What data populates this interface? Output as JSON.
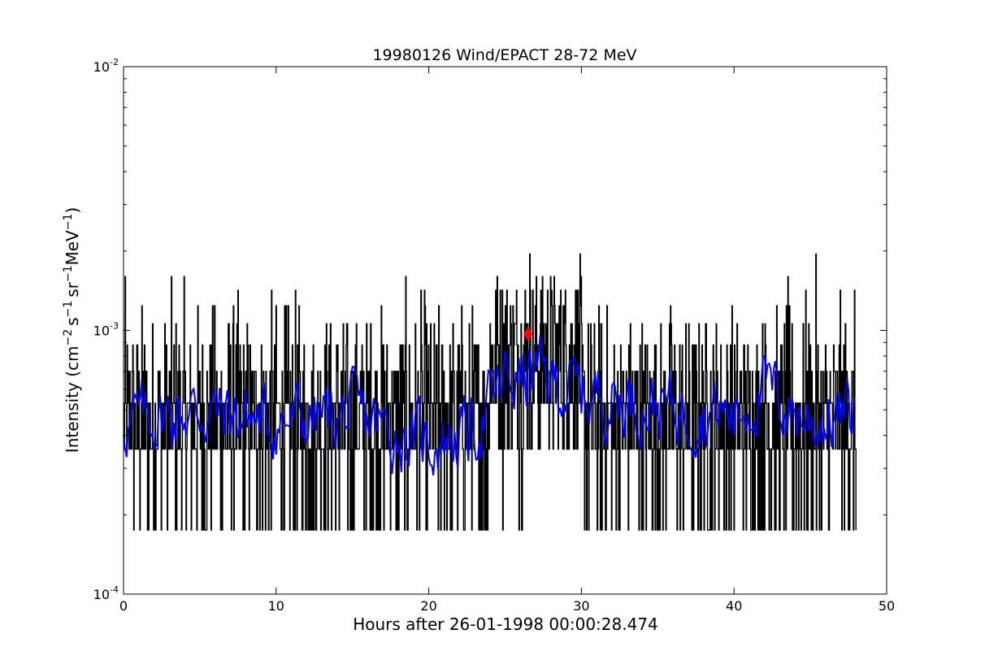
{
  "chart_data": {
    "type": "line",
    "title": "19980126 Wind/EPACT 28-72 MeV",
    "xlabel": "Hours after 26-01-1998 00:00:28.474",
    "ylabel": {
      "prefix": "Intensity (cm",
      "cm_exp": "−2",
      "s": "s",
      "s_exp": "−1",
      "sr": "sr",
      "sr_exp": "−1",
      "mev": "MeV",
      "mev_exp": "−1",
      "suffix": ")"
    },
    "xlim": [
      0,
      50
    ],
    "ylim": [
      0.0001,
      0.01
    ],
    "yscale": "log",
    "x_ticks": [
      0,
      10,
      20,
      30,
      40,
      50
    ],
    "x_tick_labels": [
      "0",
      "10",
      "20",
      "30",
      "40",
      "50"
    ],
    "y_major_ticks": [
      {
        "value": 0.0001,
        "base": "10",
        "exp": "-4"
      },
      {
        "value": 0.001,
        "base": "10",
        "exp": "-3"
      },
      {
        "value": 0.01,
        "base": "10",
        "exp": "-2"
      }
    ],
    "grid": false,
    "raw_series": {
      "color": "#000000",
      "x_range": [
        0,
        48
      ],
      "sample_step_hours": 0.0333,
      "levels": [
        0.000175,
        0.000355,
        0.00053,
        0.0007,
        0.00088,
        0.00106,
        0.00124,
        0.00142,
        0.0016,
        0.00195
      ],
      "level_weights": [
        0.17,
        0.3,
        0.27,
        0.12,
        0.07,
        0.035,
        0.02,
        0.01,
        0.004,
        0.001
      ],
      "enhanced_interval": [
        24,
        30
      ],
      "peak": {
        "x": 26.6,
        "y": 0.00195
      }
    },
    "smoothed_series": {
      "color": "#0000ff",
      "x_range": [
        0,
        48
      ],
      "typical_range": [
        0.0003,
        0.0009
      ],
      "profile": [
        {
          "x": 0,
          "y": 0.00045
        },
        {
          "x": 5,
          "y": 0.0005
        },
        {
          "x": 10,
          "y": 0.00045
        },
        {
          "x": 15,
          "y": 0.00048
        },
        {
          "x": 18,
          "y": 0.0004
        },
        {
          "x": 20,
          "y": 0.00038
        },
        {
          "x": 23,
          "y": 0.00042
        },
        {
          "x": 25,
          "y": 0.00065
        },
        {
          "x": 27,
          "y": 0.00068
        },
        {
          "x": 30,
          "y": 0.00058
        },
        {
          "x": 35,
          "y": 0.00052
        },
        {
          "x": 40,
          "y": 0.00048
        },
        {
          "x": 42,
          "y": 0.0006
        },
        {
          "x": 45,
          "y": 0.00045
        },
        {
          "x": 48,
          "y": 0.00048
        }
      ]
    },
    "marker": {
      "x": 26.5,
      "y": 0.00097,
      "color": "#ff0000",
      "shape": "diamond"
    }
  }
}
